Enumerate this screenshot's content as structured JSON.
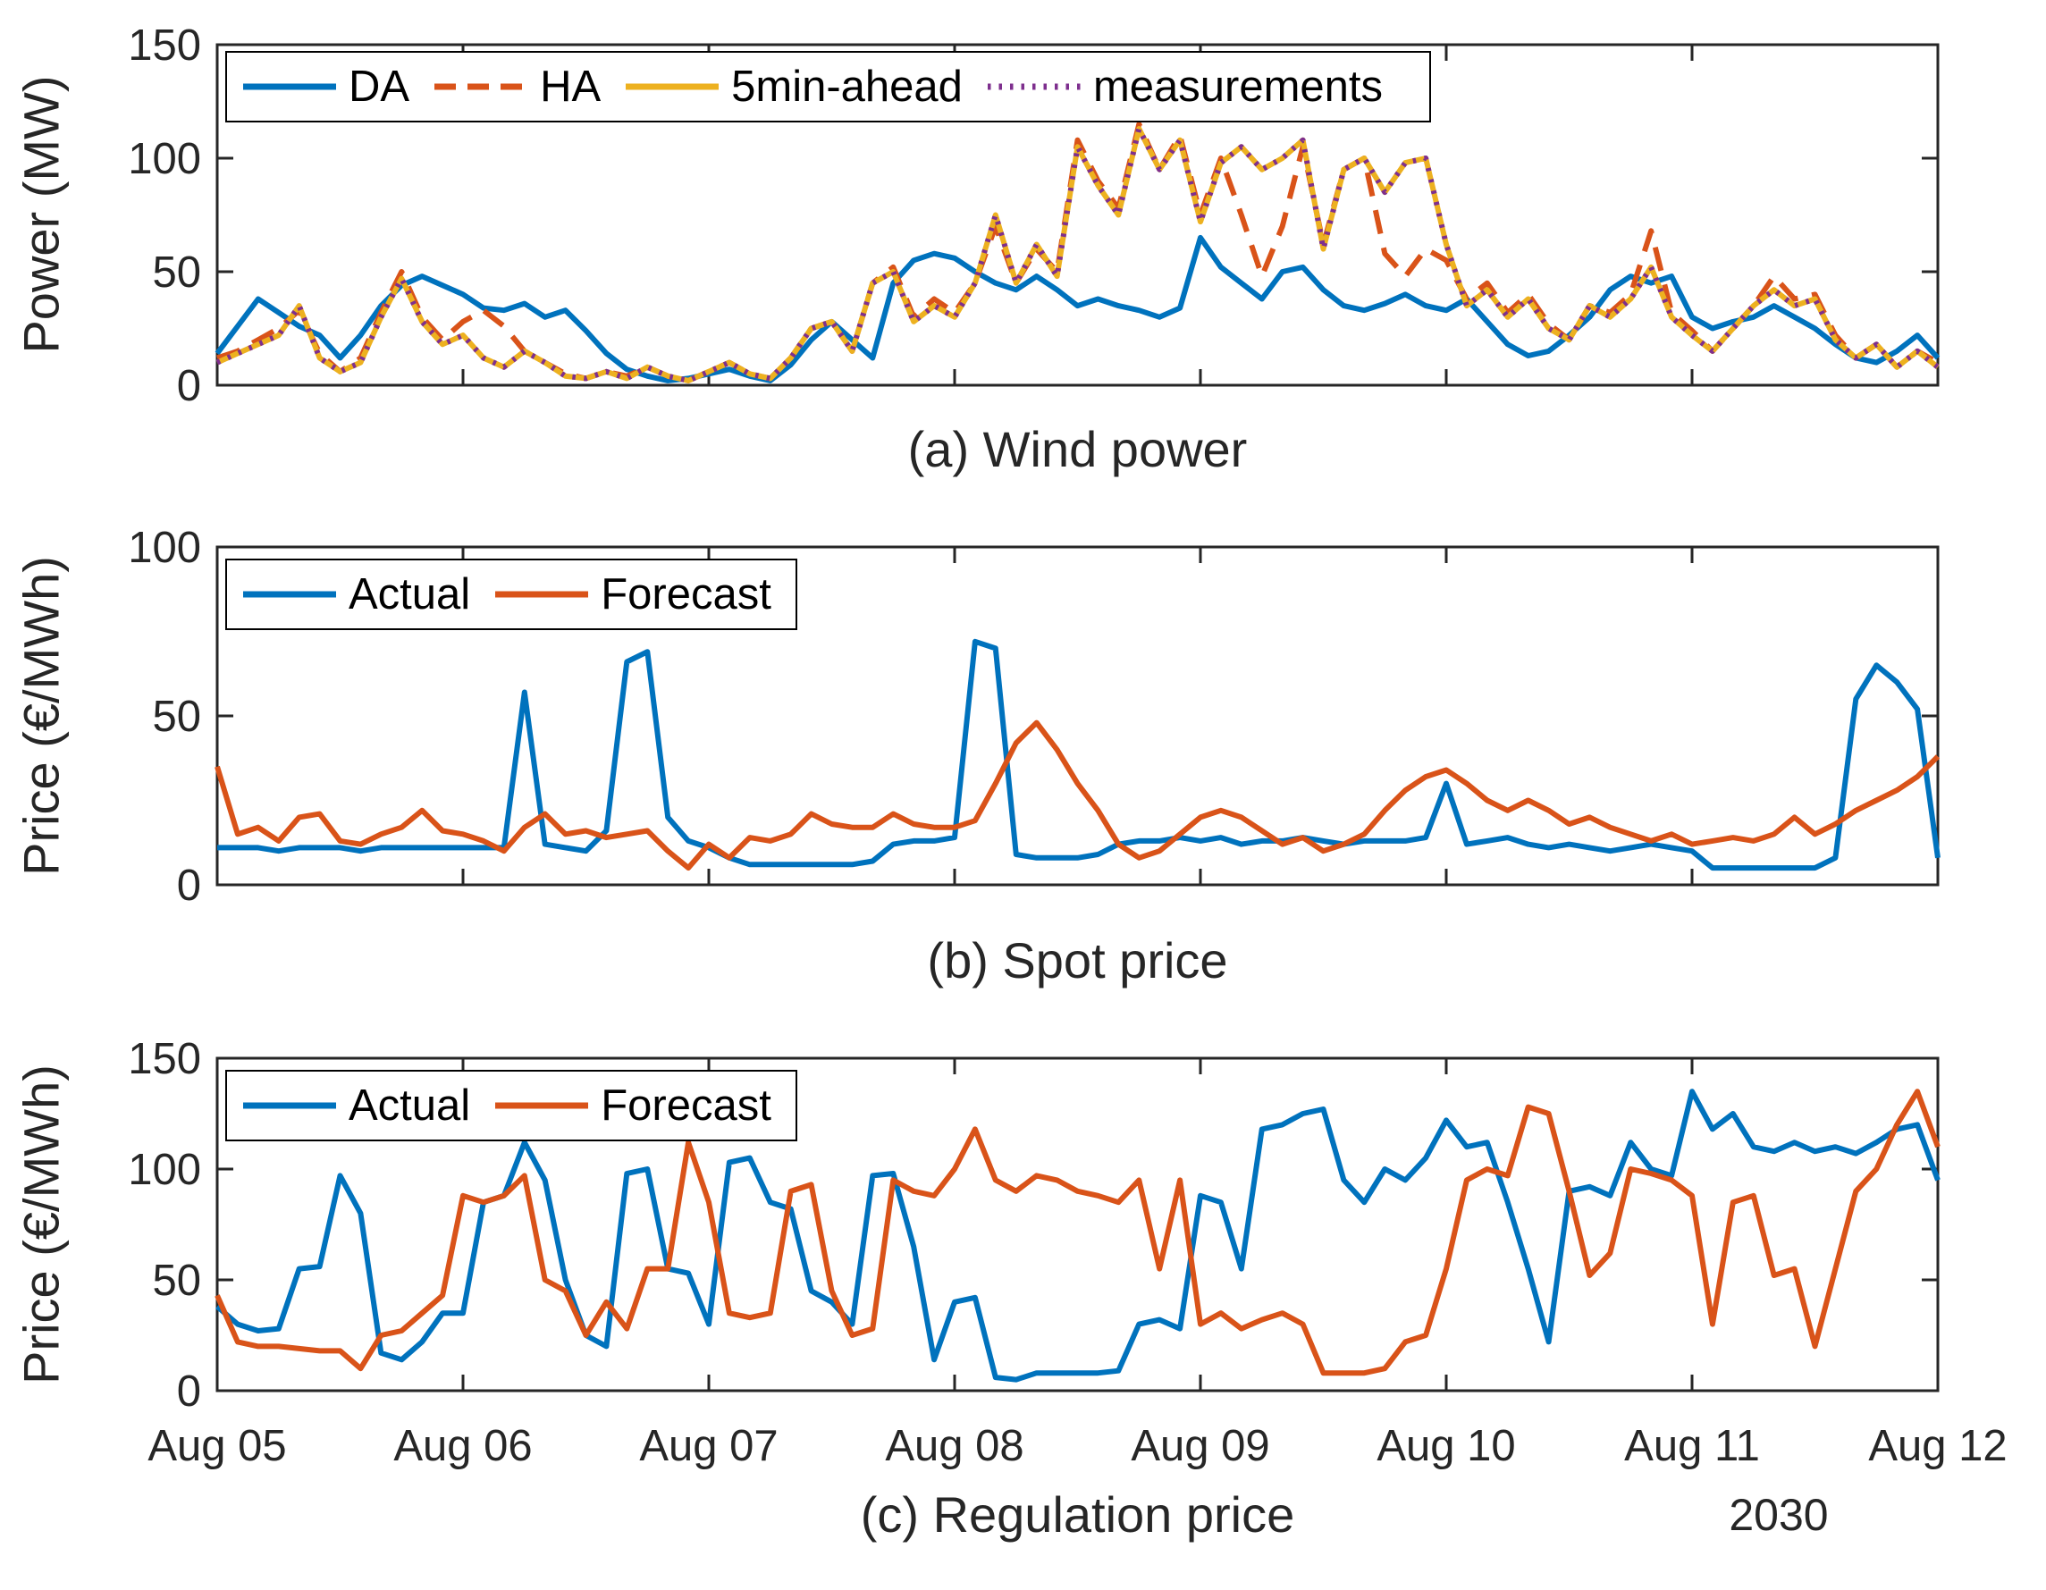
{
  "figure": {
    "year_label": "2030",
    "background": "#ffffff",
    "x_axis": {
      "tick_labels": [
        "Aug 05",
        "Aug 06",
        "Aug 07",
        "Aug 08",
        "Aug 09",
        "Aug 10",
        "Aug 11",
        "Aug 12"
      ],
      "year": "2030"
    }
  },
  "chart_data": [
    {
      "id": "a",
      "type": "line",
      "caption": "(a) Wind power",
      "ylabel": "Power (MW)",
      "ylim": [
        0,
        150
      ],
      "yticks": [
        0,
        50,
        100,
        150
      ],
      "x_tick_labels": [
        "Aug 05",
        "Aug 06",
        "Aug 07",
        "Aug 08",
        "Aug 09",
        "Aug 10",
        "Aug 11",
        "Aug 12"
      ],
      "show_x_tick_labels": false,
      "x_range": [
        "Aug 05",
        "Aug 12"
      ],
      "grid": false,
      "legend_position": "top-left",
      "series": [
        {
          "name": "DA",
          "color": "#0072BD",
          "style": "solid",
          "width": 6,
          "values": [
            14,
            26,
            38,
            32,
            26,
            22,
            12,
            22,
            35,
            44,
            48,
            44,
            40,
            34,
            33,
            36,
            30,
            33,
            24,
            14,
            7,
            4,
            2,
            3,
            5,
            7,
            4,
            2,
            9,
            20,
            28,
            20,
            12,
            45,
            55,
            58,
            56,
            50,
            45,
            42,
            48,
            42,
            35,
            38,
            35,
            33,
            30,
            34,
            65,
            52,
            45,
            38,
            50,
            52,
            42,
            35,
            33,
            36,
            40,
            35,
            33,
            38,
            28,
            18,
            13,
            15,
            22,
            30,
            42,
            48,
            45,
            48,
            30,
            25,
            28,
            30,
            35,
            30,
            25,
            18,
            12,
            10,
            15,
            22,
            12
          ]
        },
        {
          "name": "HA",
          "color": "#D95319",
          "style": "dashed",
          "width": 6,
          "values": [
            12,
            15,
            20,
            25,
            33,
            14,
            6,
            12,
            32,
            50,
            30,
            20,
            28,
            33,
            26,
            15,
            10,
            5,
            3,
            6,
            4,
            8,
            4,
            2,
            6,
            10,
            5,
            3,
            12,
            25,
            28,
            15,
            45,
            52,
            30,
            38,
            32,
            45,
            70,
            45,
            60,
            50,
            108,
            90,
            78,
            115,
            95,
            110,
            75,
            100,
            75,
            48,
            70,
            105,
            62,
            95,
            100,
            58,
            48,
            60,
            55,
            38,
            45,
            32,
            40,
            27,
            20,
            35,
            32,
            40,
            68,
            32,
            24,
            15,
            25,
            35,
            48,
            38,
            40,
            22,
            12,
            18,
            8,
            15,
            10
          ]
        },
        {
          "name": "5min-ahead",
          "color": "#EDB120",
          "style": "solid",
          "width": 6,
          "values": [
            10,
            14,
            18,
            22,
            35,
            12,
            6,
            10,
            30,
            47,
            28,
            18,
            22,
            12,
            8,
            15,
            10,
            4,
            3,
            6,
            3,
            8,
            4,
            2,
            6,
            10,
            5,
            3,
            12,
            25,
            28,
            15,
            45,
            50,
            28,
            35,
            30,
            45,
            75,
            45,
            62,
            48,
            105,
            88,
            75,
            113,
            95,
            108,
            72,
            98,
            105,
            95,
            100,
            108,
            60,
            95,
            100,
            85,
            98,
            100,
            62,
            35,
            42,
            30,
            38,
            25,
            20,
            35,
            30,
            38,
            52,
            30,
            22,
            15,
            25,
            35,
            42,
            35,
            38,
            20,
            12,
            18,
            8,
            15,
            8
          ]
        },
        {
          "name": "measurements",
          "color": "#7E2F8E",
          "style": "dotted",
          "width": 6,
          "values": [
            10,
            14,
            18,
            22,
            35,
            12,
            6,
            10,
            30,
            47,
            28,
            18,
            22,
            12,
            8,
            15,
            10,
            4,
            3,
            6,
            3,
            8,
            4,
            2,
            6,
            10,
            5,
            3,
            12,
            25,
            28,
            15,
            45,
            50,
            28,
            35,
            30,
            45,
            75,
            45,
            62,
            48,
            105,
            88,
            75,
            113,
            95,
            108,
            72,
            98,
            105,
            95,
            100,
            108,
            60,
            95,
            100,
            85,
            98,
            100,
            62,
            35,
            42,
            30,
            38,
            25,
            20,
            35,
            30,
            38,
            52,
            30,
            22,
            15,
            25,
            35,
            42,
            35,
            38,
            20,
            12,
            18,
            8,
            15,
            8
          ]
        }
      ]
    },
    {
      "id": "b",
      "type": "line",
      "caption": "(b) Spot price",
      "ylabel": "Price (€/MWh)",
      "ylim": [
        0,
        100
      ],
      "yticks": [
        0,
        50,
        100
      ],
      "x_tick_labels": [
        "Aug 05",
        "Aug 06",
        "Aug 07",
        "Aug 08",
        "Aug 09",
        "Aug 10",
        "Aug 11",
        "Aug 12"
      ],
      "show_x_tick_labels": false,
      "x_range": [
        "Aug 05",
        "Aug 12"
      ],
      "grid": false,
      "legend_position": "top-left",
      "series": [
        {
          "name": "Actual",
          "color": "#0072BD",
          "style": "solid",
          "width": 6,
          "values": [
            11,
            11,
            11,
            10,
            11,
            11,
            11,
            10,
            11,
            11,
            11,
            11,
            11,
            11,
            11,
            57,
            12,
            11,
            10,
            16,
            66,
            69,
            20,
            13,
            11,
            8,
            6,
            6,
            6,
            6,
            6,
            6,
            7,
            12,
            13,
            13,
            14,
            72,
            70,
            9,
            8,
            8,
            8,
            9,
            12,
            13,
            13,
            14,
            13,
            14,
            12,
            13,
            13,
            14,
            13,
            12,
            13,
            13,
            13,
            14,
            30,
            12,
            13,
            14,
            12,
            11,
            12,
            11,
            10,
            11,
            12,
            11,
            10,
            5,
            5,
            5,
            5,
            5,
            5,
            8,
            55,
            65,
            60,
            52,
            8
          ]
        },
        {
          "name": "Forecast",
          "color": "#D95319",
          "style": "solid",
          "width": 6,
          "values": [
            35,
            15,
            17,
            13,
            20,
            21,
            13,
            12,
            15,
            17,
            22,
            16,
            15,
            13,
            10,
            17,
            21,
            15,
            16,
            14,
            15,
            16,
            10,
            5,
            12,
            8,
            14,
            13,
            15,
            21,
            18,
            17,
            17,
            21,
            18,
            17,
            17,
            19,
            30,
            42,
            48,
            40,
            30,
            22,
            12,
            8,
            10,
            15,
            20,
            22,
            20,
            16,
            12,
            14,
            10,
            12,
            15,
            22,
            28,
            32,
            34,
            30,
            25,
            22,
            25,
            22,
            18,
            20,
            17,
            15,
            13,
            15,
            12,
            13,
            14,
            13,
            15,
            20,
            15,
            18,
            22,
            25,
            28,
            32,
            38
          ]
        }
      ]
    },
    {
      "id": "c",
      "type": "line",
      "caption": "(c) Regulation price",
      "ylabel": "Price (€/MWh)",
      "ylim": [
        0,
        150
      ],
      "yticks": [
        0,
        50,
        100,
        150
      ],
      "x_tick_labels": [
        "Aug 05",
        "Aug 06",
        "Aug 07",
        "Aug 08",
        "Aug 09",
        "Aug 10",
        "Aug 11",
        "Aug 12"
      ],
      "show_x_tick_labels": true,
      "x_range": [
        "Aug 05",
        "Aug 12"
      ],
      "grid": false,
      "legend_position": "top-left",
      "series": [
        {
          "name": "Actual",
          "color": "#0072BD",
          "style": "solid",
          "width": 6,
          "values": [
            38,
            30,
            27,
            28,
            55,
            56,
            97,
            80,
            17,
            14,
            22,
            35,
            35,
            85,
            88,
            112,
            95,
            50,
            25,
            20,
            98,
            100,
            55,
            53,
            30,
            103,
            105,
            85,
            82,
            45,
            40,
            30,
            97,
            98,
            65,
            14,
            40,
            42,
            6,
            5,
            8,
            8,
            8,
            8,
            9,
            30,
            32,
            28,
            88,
            85,
            55,
            118,
            120,
            125,
            127,
            95,
            85,
            100,
            95,
            105,
            122,
            110,
            112,
            85,
            55,
            22,
            90,
            92,
            88,
            112,
            100,
            97,
            135,
            118,
            125,
            110,
            108,
            112,
            108,
            110,
            107,
            112,
            118,
            120,
            95
          ]
        },
        {
          "name": "Forecast",
          "color": "#D95319",
          "style": "solid",
          "width": 6,
          "values": [
            43,
            22,
            20,
            20,
            19,
            18,
            18,
            10,
            25,
            27,
            35,
            43,
            88,
            85,
            88,
            97,
            50,
            45,
            25,
            40,
            28,
            55,
            55,
            112,
            85,
            35,
            33,
            35,
            90,
            93,
            45,
            25,
            28,
            95,
            90,
            88,
            100,
            118,
            95,
            90,
            97,
            95,
            90,
            88,
            85,
            95,
            55,
            95,
            30,
            35,
            28,
            32,
            35,
            30,
            8,
            8,
            8,
            10,
            22,
            25,
            55,
            95,
            100,
            97,
            128,
            125,
            90,
            52,
            62,
            100,
            98,
            95,
            88,
            30,
            85,
            88,
            52,
            55,
            20,
            55,
            90,
            100,
            120,
            135,
            110
          ]
        }
      ]
    }
  ]
}
